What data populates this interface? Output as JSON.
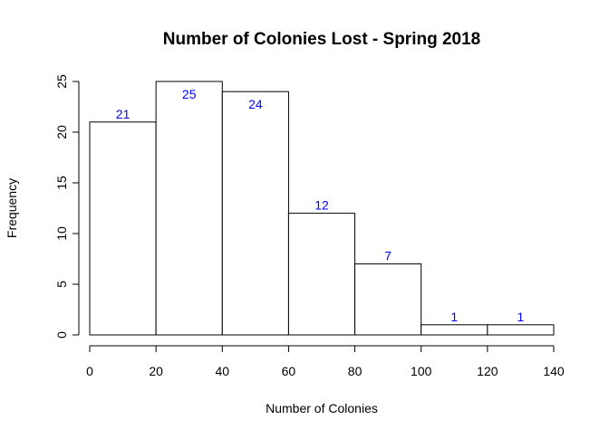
{
  "chart_data": {
    "type": "bar",
    "title": "Number of Colonies Lost - Spring 2018",
    "xlabel": "Number of Colonies",
    "ylabel": "Frequency",
    "bins": [
      {
        "from": 0,
        "to": 20,
        "count": 21,
        "label": "21"
      },
      {
        "from": 20,
        "to": 40,
        "count": 25,
        "label": "25"
      },
      {
        "from": 40,
        "to": 60,
        "count": 24,
        "label": "24"
      },
      {
        "from": 60,
        "to": 80,
        "count": 12,
        "label": "12"
      },
      {
        "from": 80,
        "to": 100,
        "count": 7,
        "label": "7"
      },
      {
        "from": 100,
        "to": 120,
        "count": 1,
        "label": "1"
      },
      {
        "from": 120,
        "to": 140,
        "count": 1,
        "label": "1"
      }
    ],
    "xlim": [
      0,
      140
    ],
    "ylim": [
      0,
      25
    ],
    "xticks": [
      0,
      20,
      40,
      60,
      80,
      100,
      120,
      140
    ],
    "xtick_labels": [
      "0",
      "20",
      "40",
      "60",
      "80",
      "100",
      "120",
      "140"
    ],
    "yticks": [
      0,
      5,
      10,
      15,
      20,
      25
    ],
    "ytick_labels": [
      "0",
      "5",
      "10",
      "15",
      "20",
      "25"
    ],
    "grid": false,
    "bar_fill": "#ffffff",
    "bar_stroke": "#000000",
    "label_color": "#0000ff"
  }
}
